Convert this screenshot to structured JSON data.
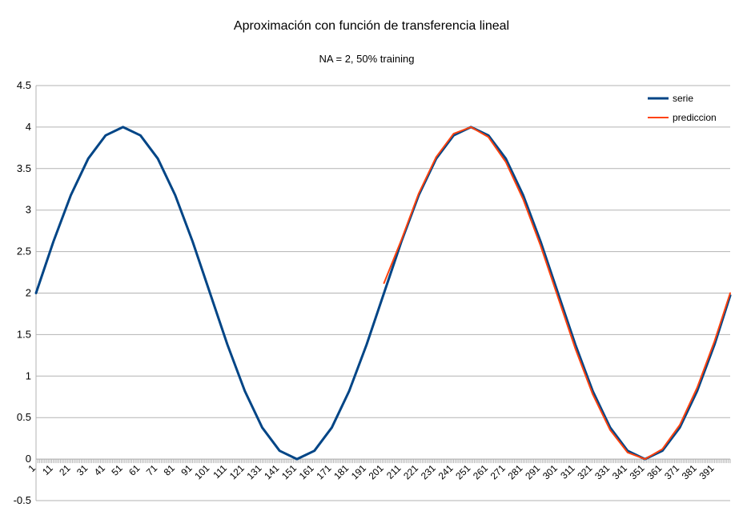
{
  "chart_data": {
    "type": "line",
    "title": "Aproximación con función de transferencia lineal",
    "subtitle": "NA = 2, 50% training",
    "xlabel": "",
    "ylabel": "",
    "ylim": [
      -0.5,
      4.5
    ],
    "y_ticks": [
      "-0.5",
      "0",
      "0.5",
      "1",
      "1.5",
      "2",
      "2.5",
      "3",
      "3.5",
      "4",
      "4.5"
    ],
    "x_range": [
      1,
      400
    ],
    "x_ticks": [
      "1",
      "11",
      "21",
      "31",
      "41",
      "51",
      "61",
      "71",
      "81",
      "91",
      "101",
      "111",
      "121",
      "131",
      "141",
      "151",
      "161",
      "171",
      "181",
      "191",
      "201",
      "211",
      "221",
      "231",
      "241",
      "251",
      "261",
      "271",
      "281",
      "291",
      "301",
      "311",
      "321",
      "331",
      "341",
      "351",
      "361",
      "371",
      "381",
      "391"
    ],
    "grid": true,
    "legend_position": "top-right",
    "series": [
      {
        "name": "serie",
        "color": "#004586",
        "x": [
          1,
          11,
          21,
          31,
          41,
          51,
          61,
          71,
          81,
          91,
          101,
          111,
          121,
          131,
          141,
          151,
          161,
          171,
          181,
          191,
          201,
          211,
          221,
          231,
          241,
          251,
          261,
          271,
          281,
          291,
          301,
          311,
          321,
          331,
          341,
          351,
          361,
          371,
          381,
          391,
          400
        ],
        "values": [
          2.0,
          2.62,
          3.18,
          3.62,
          3.9,
          4.0,
          3.9,
          3.62,
          3.18,
          2.62,
          2.0,
          1.38,
          0.82,
          0.38,
          0.1,
          0.0,
          0.1,
          0.38,
          0.82,
          1.38,
          2.0,
          2.62,
          3.18,
          3.62,
          3.9,
          4.0,
          3.9,
          3.62,
          3.18,
          2.62,
          2.0,
          1.38,
          0.82,
          0.38,
          0.1,
          0.0,
          0.1,
          0.38,
          0.82,
          1.38,
          1.97
        ]
      },
      {
        "name": "prediccion",
        "color": "#ff420e",
        "x": [
          201,
          211,
          221,
          231,
          241,
          251,
          261,
          271,
          281,
          291,
          301,
          311,
          321,
          331,
          341,
          351,
          361,
          371,
          381,
          391,
          400
        ],
        "values": [
          2.12,
          2.64,
          3.2,
          3.64,
          3.92,
          4.0,
          3.88,
          3.58,
          3.13,
          2.57,
          1.95,
          1.33,
          0.78,
          0.35,
          0.08,
          0.0,
          0.12,
          0.41,
          0.86,
          1.42,
          2.0
        ]
      }
    ]
  }
}
